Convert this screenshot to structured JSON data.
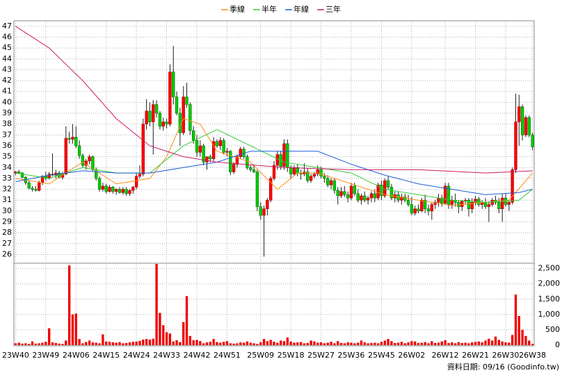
{
  "chart_data": {
    "type": "candlestick",
    "categories": [
      "23W40",
      null,
      null,
      null,
      null,
      null,
      null,
      null,
      null,
      "23W49",
      null,
      null,
      null,
      null,
      null,
      null,
      null,
      null,
      "24W06",
      null,
      null,
      null,
      null,
      null,
      null,
      null,
      null,
      "24W15",
      null,
      null,
      null,
      null,
      null,
      null,
      null,
      null,
      "24W24",
      null,
      null,
      null,
      null,
      null,
      null,
      null,
      null,
      "24W33",
      null,
      null,
      null,
      null,
      null,
      null,
      null,
      null,
      "24W42",
      null,
      null,
      null,
      null,
      null,
      null,
      null,
      null,
      "24W51",
      null,
      null,
      null,
      null,
      null,
      null,
      null,
      null,
      null,
      "25W09",
      null,
      null,
      null,
      null,
      null,
      null,
      null,
      null,
      "25W18",
      null,
      null,
      null,
      null,
      null,
      null,
      null,
      null,
      "25W27",
      null,
      null,
      null,
      null,
      null,
      null,
      null,
      null,
      "25W36",
      null,
      null,
      null,
      null,
      null,
      null,
      null,
      null,
      "25W45",
      null,
      null,
      null,
      null,
      null,
      null,
      null,
      null,
      "26W02",
      null,
      null,
      null,
      null,
      null,
      null,
      null,
      null,
      null,
      "26W12",
      null,
      null,
      null,
      null,
      null,
      null,
      null,
      null,
      "26W21",
      null,
      null,
      null,
      null,
      null,
      null,
      null,
      null,
      "26W30",
      null,
      null,
      null,
      null,
      null,
      null,
      null,
      "26W38"
    ],
    "ohlc": [
      [
        33.5,
        33.7,
        33.3,
        33.6
      ],
      [
        33.6,
        33.8,
        33.4,
        33.5
      ],
      [
        33.5,
        33.6,
        33,
        33.1
      ],
      [
        33.1,
        33.2,
        32.4,
        32.6
      ],
      [
        32.6,
        32.8,
        32,
        32.1
      ],
      [
        32.1,
        32.3,
        31.8,
        32
      ],
      [
        32,
        32.3,
        31.8,
        31.9
      ],
      [
        31.9,
        32.8,
        31.8,
        32.6
      ],
      [
        32.6,
        33.3,
        32.4,
        33.2
      ],
      [
        33.2,
        33.6,
        32.8,
        33
      ],
      [
        33,
        33.6,
        32.9,
        33.4
      ],
      [
        33.4,
        35.3,
        33.2,
        33.3
      ],
      [
        33.3,
        33.8,
        33,
        33.5
      ],
      [
        33.5,
        33.7,
        33,
        33.1
      ],
      [
        33.1,
        33.6,
        32.9,
        33.4
      ],
      [
        33.4,
        37.8,
        33.3,
        36.7
      ],
      [
        36.7,
        37.3,
        36.2,
        36.6
      ],
      [
        36.6,
        38,
        36.2,
        36.8
      ],
      [
        36.8,
        37.8,
        35.8,
        36
      ],
      [
        36,
        36.5,
        34.8,
        35.1
      ],
      [
        35.1,
        35.3,
        34,
        34.2
      ],
      [
        34.2,
        34.8,
        33.8,
        34.6
      ],
      [
        34.6,
        35.2,
        34.3,
        35
      ],
      [
        35,
        35.1,
        33.6,
        33.8
      ],
      [
        33.8,
        34,
        32.8,
        33
      ],
      [
        33,
        33.2,
        31.8,
        32
      ],
      [
        32,
        32.6,
        31.8,
        32.3
      ],
      [
        32.3,
        32.5,
        31.6,
        31.8
      ],
      [
        31.8,
        32.4,
        31.7,
        32.2
      ],
      [
        32.2,
        32.3,
        31.6,
        31.8
      ],
      [
        31.8,
        32.1,
        31.5,
        32
      ],
      [
        32,
        32.2,
        31.6,
        31.7
      ],
      [
        31.7,
        32.2,
        31.5,
        32
      ],
      [
        32,
        32.2,
        31.4,
        31.6
      ],
      [
        31.6,
        32,
        31.4,
        31.9
      ],
      [
        31.9,
        32.3,
        31.6,
        32.2
      ],
      [
        32.2,
        33.5,
        32,
        33.2
      ],
      [
        33.2,
        34.2,
        33,
        33.4
      ],
      [
        33.4,
        38.5,
        33.2,
        38
      ],
      [
        38,
        40.3,
        37.5,
        39.2
      ],
      [
        39.2,
        40,
        37.8,
        38.2
      ],
      [
        38.2,
        40.2,
        35.2,
        39.8
      ],
      [
        39.8,
        40.2,
        38.6,
        39
      ],
      [
        39,
        39.2,
        37.5,
        37.8
      ],
      [
        37.8,
        38.6,
        37.4,
        38.2
      ],
      [
        38.2,
        38.5,
        37.6,
        38
      ],
      [
        38,
        43.5,
        37.8,
        42.8
      ],
      [
        42.8,
        45.2,
        39.8,
        40.5
      ],
      [
        40.5,
        41,
        38.8,
        39
      ],
      [
        39,
        39.5,
        36,
        37.2
      ],
      [
        37.2,
        41.5,
        37,
        40.5
      ],
      [
        40.5,
        41.8,
        39.5,
        39.8
      ],
      [
        39.8,
        40,
        37,
        37.4
      ],
      [
        37.4,
        37.8,
        36.2,
        36.5
      ],
      [
        36.5,
        37,
        35,
        35.4
      ],
      [
        35.4,
        36.5,
        35,
        36
      ],
      [
        36,
        36.2,
        34.2,
        34.5
      ],
      [
        34.5,
        35,
        33.8,
        35
      ],
      [
        35,
        35.2,
        34.5,
        34.8
      ],
      [
        34.8,
        36.8,
        34.6,
        36.4
      ],
      [
        36.4,
        36.6,
        35.8,
        36
      ],
      [
        36,
        36.8,
        35.6,
        36.5
      ],
      [
        36.5,
        36.7,
        35.2,
        35.4
      ],
      [
        35.4,
        35.8,
        35,
        35.5
      ],
      [
        35.5,
        35.6,
        33.3,
        33.6
      ],
      [
        33.6,
        34.5,
        33.4,
        34.3
      ],
      [
        34.3,
        35.2,
        34,
        35
      ],
      [
        35,
        35.9,
        34.8,
        35.7
      ],
      [
        35.7,
        35.9,
        34.8,
        35
      ],
      [
        35,
        35.2,
        33.8,
        34
      ],
      [
        34,
        34.2,
        33.6,
        33.8
      ],
      [
        33.8,
        34.3,
        33.5,
        33.6
      ],
      [
        33.6,
        33.8,
        30,
        30.4
      ],
      [
        30.4,
        30.8,
        29.2,
        29.6
      ],
      [
        29.6,
        30.5,
        25.8,
        30.2
      ],
      [
        30.2,
        31.2,
        29.6,
        31
      ],
      [
        31,
        33.2,
        30.8,
        33
      ],
      [
        33,
        34.6,
        32.8,
        34.2
      ],
      [
        34.2,
        35.5,
        33.8,
        35.2
      ],
      [
        35.2,
        35.5,
        33.8,
        34.1
      ],
      [
        34.1,
        36.6,
        33.8,
        36.2
      ],
      [
        36.2,
        36.6,
        33.6,
        34
      ],
      [
        34,
        34.2,
        33,
        33.4
      ],
      [
        33.4,
        34.2,
        33.2,
        34
      ],
      [
        34,
        34.3,
        33.2,
        33.5
      ],
      [
        33.5,
        33.8,
        32.9,
        33.4
      ],
      [
        33.4,
        34.4,
        33.2,
        33.6
      ],
      [
        33.6,
        33.9,
        32.6,
        32.8
      ],
      [
        32.8,
        33.4,
        32.6,
        33.2
      ],
      [
        33.2,
        33.6,
        33,
        33.4
      ],
      [
        33.4,
        34.2,
        33.2,
        33.8
      ],
      [
        33.8,
        34.1,
        33,
        33.2
      ],
      [
        33.2,
        33.5,
        32.6,
        33
      ],
      [
        33,
        33.3,
        32.2,
        32.4
      ],
      [
        32.4,
        33,
        32,
        32.8
      ],
      [
        32.8,
        33,
        31.6,
        31.9
      ],
      [
        31.9,
        32.2,
        30.6,
        31.4
      ],
      [
        31.4,
        32.2,
        31.2,
        31.8
      ],
      [
        31.8,
        32.3,
        31.3,
        31.5
      ],
      [
        31.5,
        31.8,
        30.8,
        31.2
      ],
      [
        31.2,
        32.6,
        31,
        32.3
      ],
      [
        32.3,
        32.6,
        31.4,
        31.6
      ],
      [
        31.6,
        32,
        30.8,
        31
      ],
      [
        31,
        31.6,
        30.6,
        31.4
      ],
      [
        31.4,
        31.8,
        30.8,
        31
      ],
      [
        31,
        31.4,
        30.6,
        31.2
      ],
      [
        31.2,
        31.8,
        30.8,
        31.6
      ],
      [
        31.6,
        32,
        30.8,
        31.2
      ],
      [
        31.2,
        32.6,
        31,
        32.4
      ],
      [
        32.4,
        32.8,
        31,
        31.4
      ],
      [
        31.4,
        33,
        31.2,
        32.8
      ],
      [
        32.8,
        33.2,
        32,
        32.2
      ],
      [
        32.2,
        32.5,
        31,
        31.2
      ],
      [
        31.2,
        31.8,
        30.8,
        31.5
      ],
      [
        31.5,
        31.8,
        30.8,
        31
      ],
      [
        31,
        31.6,
        30.6,
        31.3
      ],
      [
        31.3,
        31.6,
        30.8,
        31
      ],
      [
        31,
        31.5,
        30.4,
        30.6
      ],
      [
        30.6,
        31.3,
        29.6,
        29.8
      ],
      [
        29.8,
        30.5,
        29.6,
        30.2
      ],
      [
        30.2,
        30.6,
        29.8,
        30
      ],
      [
        30,
        31.2,
        29.9,
        31
      ],
      [
        31,
        31.5,
        29.8,
        30.2
      ],
      [
        30.2,
        30.6,
        29.6,
        30
      ],
      [
        30,
        30.8,
        29.2,
        30.6
      ],
      [
        30.6,
        31,
        30.2,
        30.8
      ],
      [
        30.8,
        31.6,
        30.4,
        31.2
      ],
      [
        31.2,
        31.5,
        30.4,
        30.7
      ],
      [
        30.7,
        32.6,
        30.6,
        32.3
      ],
      [
        32.3,
        32.6,
        30.2,
        30.6
      ],
      [
        30.6,
        31.4,
        30.2,
        31
      ],
      [
        31,
        31.6,
        30.4,
        30.8
      ],
      [
        30.8,
        31,
        29.8,
        30.4
      ],
      [
        30.4,
        31,
        30,
        30.9
      ],
      [
        30.9,
        31.2,
        30.6,
        31
      ],
      [
        31,
        31.2,
        29.5,
        30.2
      ],
      [
        30.2,
        31.2,
        29.8,
        30.8
      ],
      [
        30.8,
        31.4,
        30.5,
        31.1
      ],
      [
        31.1,
        31.3,
        30.4,
        30.6
      ],
      [
        30.6,
        31,
        30.2,
        30.8
      ],
      [
        30.8,
        31.2,
        30.2,
        30.4
      ],
      [
        30.4,
        30.9,
        29,
        30.6
      ],
      [
        30.6,
        31.2,
        30.4,
        31
      ],
      [
        31,
        31.4,
        30.6,
        30.8
      ],
      [
        30.8,
        31.2,
        29.8,
        30.2
      ],
      [
        30.2,
        31.6,
        29,
        31.2
      ],
      [
        31.2,
        31.6,
        30.4,
        30.6
      ],
      [
        30.6,
        31,
        30,
        30.8
      ],
      [
        30.8,
        34,
        30.6,
        33.8
      ],
      [
        33.8,
        40.8,
        33.5,
        38.2
      ],
      [
        38.2,
        40.7,
        36,
        39.6
      ],
      [
        39.6,
        39.8,
        36.5,
        37
      ],
      [
        37,
        38.8,
        36.8,
        38.6
      ],
      [
        38.6,
        38.8,
        36.8,
        37
      ],
      [
        37,
        37.2,
        35.6,
        35.9
      ]
    ],
    "up_color": "#ff0000",
    "down_color": "#00cc00",
    "volume": [
      60,
      80,
      50,
      60,
      40,
      120,
      50,
      60,
      80,
      110,
      550,
      90,
      70,
      50,
      40,
      150,
      2600,
      1000,
      1030,
      200,
      60,
      100,
      150,
      90,
      80,
      60,
      350,
      120,
      110,
      90,
      80,
      100,
      60,
      70,
      90,
      110,
      120,
      140,
      180,
      200,
      180,
      210,
      2650,
      1050,
      650,
      420,
      380,
      120,
      160,
      100,
      750,
      1600,
      300,
      160,
      170,
      130,
      60,
      90,
      110,
      200,
      100,
      80,
      110,
      130,
      60,
      50,
      60,
      90,
      80,
      120,
      80,
      60,
      40,
      90,
      200,
      130,
      170,
      110,
      80,
      150,
      130,
      250,
      120,
      80,
      90,
      100,
      60,
      70,
      150,
      120,
      80,
      90,
      60,
      80,
      110,
      60,
      130,
      70,
      60,
      90,
      80,
      60,
      80,
      150,
      90,
      60,
      70,
      80,
      60,
      110,
      150,
      200,
      130,
      70,
      80,
      110,
      60,
      90,
      130,
      120,
      70,
      80,
      100,
      60,
      130,
      70,
      80,
      120,
      160,
      70,
      90,
      60,
      100,
      70,
      80,
      60,
      90,
      110,
      120,
      90,
      150,
      210,
      150,
      280,
      170,
      120,
      90,
      80,
      330,
      1650,
      950,
      500,
      300,
      150,
      40
    ],
    "volume_color": "#ee0000",
    "series": [
      {
        "name": "季線",
        "color": "#ff8c1a",
        "x": [
          0,
          10,
          20,
          30,
          40,
          45,
          50,
          55,
          60,
          70,
          78,
          84,
          90,
          100,
          110,
          120,
          130,
          140,
          147,
          154
        ],
        "values": [
          33,
          32.5,
          34.5,
          32.5,
          33,
          35,
          38.5,
          38,
          35.5,
          34.5,
          32,
          33.5,
          33.5,
          32.5,
          31.5,
          31,
          30.5,
          30.8,
          31,
          33.5
        ]
      },
      {
        "name": "半年",
        "color": "#33cc33",
        "x": [
          0,
          10,
          20,
          30,
          40,
          50,
          60,
          70,
          80,
          90,
          100,
          110,
          120,
          130,
          140,
          150,
          154
        ],
        "values": [
          33.5,
          33,
          34,
          33.5,
          33.5,
          36,
          37.5,
          36,
          34.5,
          34,
          33.5,
          32,
          31.5,
          31,
          30.8,
          31,
          32
        ]
      },
      {
        "name": "年線",
        "color": "#1f5fd6",
        "x": [
          0,
          10,
          20,
          30,
          40,
          50,
          60,
          70,
          80,
          90,
          100,
          110,
          120,
          130,
          140,
          150,
          154
        ],
        "values": [
          32.7,
          33.3,
          33.7,
          33.5,
          33.5,
          34,
          34.5,
          35.5,
          35.5,
          35.5,
          34.3,
          33.3,
          32.5,
          32,
          31.5,
          31.7,
          32
        ]
      },
      {
        "name": "三年",
        "color": "#cc1a66",
        "x": [
          0,
          10,
          20,
          30,
          40,
          50,
          60,
          80,
          100,
          120,
          140,
          154
        ],
        "values": [
          47,
          45,
          42,
          38.5,
          36,
          35,
          34.5,
          34,
          33.8,
          33.8,
          33.5,
          33.7
        ]
      }
    ],
    "ylim": [
      25.2,
      47.5
    ],
    "yticks": [
      26,
      27,
      28,
      29,
      30,
      31,
      32,
      33,
      34,
      35,
      36,
      37,
      38,
      39,
      40,
      41,
      42,
      43,
      44,
      45,
      46,
      47
    ],
    "y2lim": [
      0,
      2650
    ],
    "y2ticks": [
      0,
      500,
      {
        "value": 1000,
        "label": "1,000"
      },
      {
        "value": 1500,
        "label": "1,500"
      },
      {
        "value": 2000,
        "label": "2,000"
      },
      {
        "value": 2500,
        "label": "2,500"
      }
    ],
    "grid": true,
    "footer": "資料日期: 09/16 (Goodinfo.tw)"
  }
}
